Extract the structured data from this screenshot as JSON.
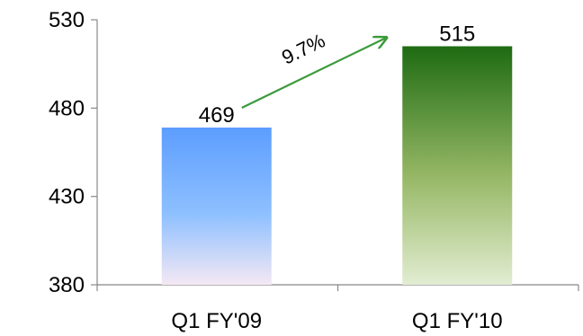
{
  "chart_data": {
    "type": "bar",
    "categories": [
      "Q1 FY'09",
      "Q1 FY'10"
    ],
    "values": [
      469,
      515
    ],
    "data_labels": [
      "469",
      "515"
    ],
    "ylim": [
      380,
      530
    ],
    "yticks": [
      380,
      430,
      480,
      530
    ],
    "ytick_labels": [
      "380",
      "430",
      "480",
      "530"
    ],
    "grid": false,
    "legend": "none",
    "annotation": {
      "text": "9.7%",
      "from_category": 0,
      "to_category": 1,
      "arrow_color": "#3a9a3a"
    },
    "colors": {
      "bar_0_top": "#5c9dff",
      "bar_0_bottom": "#f4e8f4",
      "bar_1_top": "#1e6b12",
      "bar_1_bottom": "#e2edd2",
      "axis": "#888888"
    }
  }
}
